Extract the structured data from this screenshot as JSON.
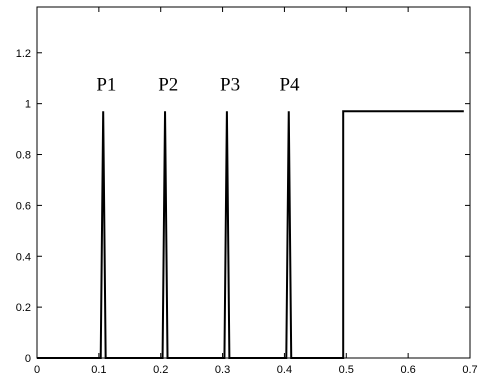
{
  "chart_data": {
    "type": "line",
    "title": "",
    "xlabel": "",
    "ylabel": "",
    "xlim": [
      0,
      0.7
    ],
    "ylim": [
      0,
      1.38
    ],
    "grid": false,
    "x_ticks": [
      "0",
      "0.1",
      "0.2",
      "0.3",
      "0.4",
      "0.5",
      "0.6",
      "0.7"
    ],
    "x_tick_values": [
      0,
      0.1,
      0.2,
      0.3,
      0.4,
      0.5,
      0.6,
      0.7
    ],
    "y_ticks": [
      "0",
      "0.2",
      "0.4",
      "0.6",
      "0.8",
      "1",
      "1.2"
    ],
    "y_tick_values": [
      0,
      0.2,
      0.4,
      0.6,
      0.8,
      1.0,
      1.2
    ],
    "series": [
      {
        "color": "#000000",
        "x": [
          0,
          0.103,
          0.107,
          0.111,
          0.203,
          0.207,
          0.211,
          0.303,
          0.307,
          0.311,
          0.403,
          0.407,
          0.411,
          0.495,
          0.495,
          0.69
        ],
        "y": [
          0,
          0,
          0.97,
          0,
          0,
          0.97,
          0,
          0,
          0.97,
          0,
          0,
          0.97,
          0,
          0,
          0.97,
          0.97
        ]
      }
    ],
    "annotations": [
      {
        "text": "P1",
        "x": 0.096,
        "y": 1.08
      },
      {
        "text": "P2",
        "x": 0.196,
        "y": 1.08
      },
      {
        "text": "P3",
        "x": 0.296,
        "y": 1.08
      },
      {
        "text": "P4",
        "x": 0.392,
        "y": 1.08
      }
    ]
  }
}
